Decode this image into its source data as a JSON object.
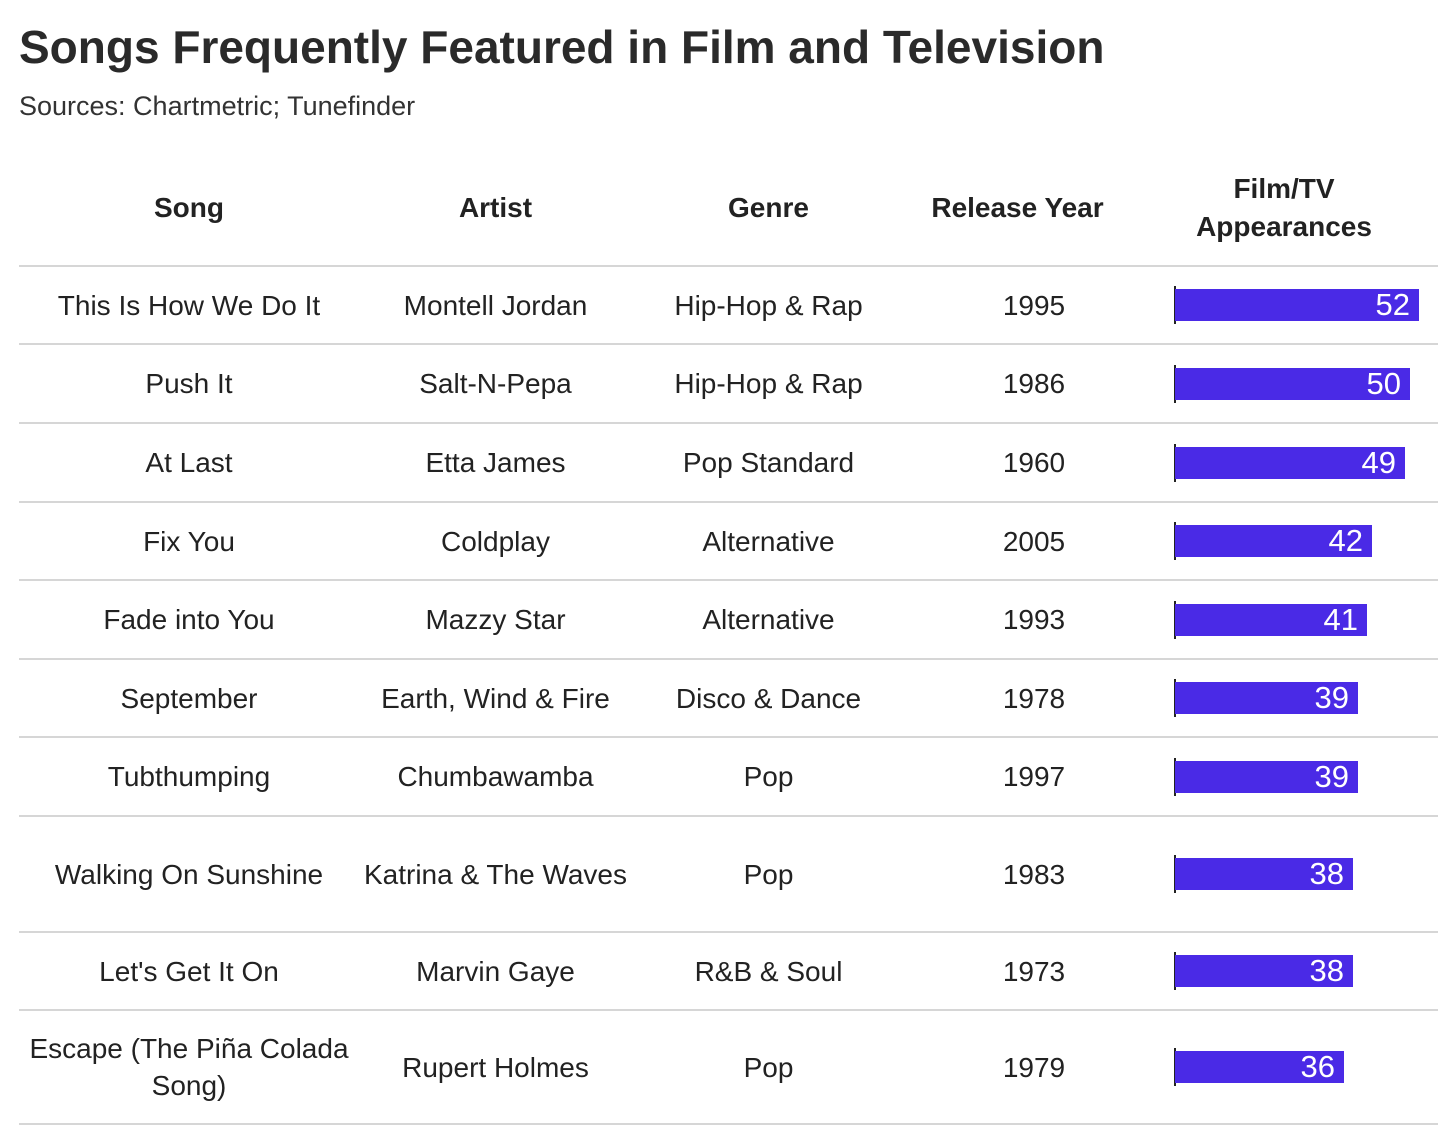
{
  "header": {
    "title": "Songs Frequently Featured in Film and Television",
    "subtitle": "Sources: Chartmetric; Tunefinder"
  },
  "columns": {
    "song": "Song",
    "artist": "Artist",
    "genre": "Genre",
    "year": "Release Year",
    "appearances_line1": "Film/TV",
    "appearances_line2": "Appearances"
  },
  "colors": {
    "bar": "#4a2ae6",
    "bar_label": "#ffffff",
    "divider": "#d6d6d6"
  },
  "chart_data": {
    "type": "table",
    "title": "Songs Frequently Featured in Film and Television",
    "subtitle": "Sources: Chartmetric; Tunefinder",
    "columns": [
      "Song",
      "Artist",
      "Genre",
      "Release Year",
      "Film/TV Appearances"
    ],
    "value_column": "Film/TV Appearances",
    "value_max": 52,
    "rows": [
      {
        "song": "This Is How We Do It",
        "artist": "Montell Jordan",
        "genre": "Hip-Hop & Rap",
        "year": "1995",
        "appearances": 52
      },
      {
        "song": "Push It",
        "artist": "Salt-N-Pepa",
        "genre": "Hip-Hop & Rap",
        "year": "1986",
        "appearances": 50
      },
      {
        "song": "At Last",
        "artist": "Etta James",
        "genre": "Pop Standard",
        "year": "1960",
        "appearances": 49
      },
      {
        "song": "Fix You",
        "artist": "Coldplay",
        "genre": "Alternative",
        "year": "2005",
        "appearances": 42
      },
      {
        "song": "Fade into You",
        "artist": "Mazzy Star",
        "genre": "Alternative",
        "year": "1993",
        "appearances": 41
      },
      {
        "song": "September",
        "artist": "Earth, Wind & Fire",
        "genre": "Disco & Dance",
        "year": "1978",
        "appearances": 39
      },
      {
        "song": "Tubthumping",
        "artist": "Chumbawamba",
        "genre": "Pop",
        "year": "1997",
        "appearances": 39
      },
      {
        "song": "Walking On Sunshine",
        "artist": "Katrina & The Waves",
        "genre": "Pop",
        "year": "1983",
        "appearances": 38
      },
      {
        "song": "Let's Get It On",
        "artist": "Marvin Gaye",
        "genre": "R&B & Soul",
        "year": "1973",
        "appearances": 38
      },
      {
        "song": "Escape (The Piña Colada Song)",
        "artist": "Rupert Holmes",
        "genre": "Pop",
        "year": "1979",
        "appearances": 36
      }
    ]
  }
}
